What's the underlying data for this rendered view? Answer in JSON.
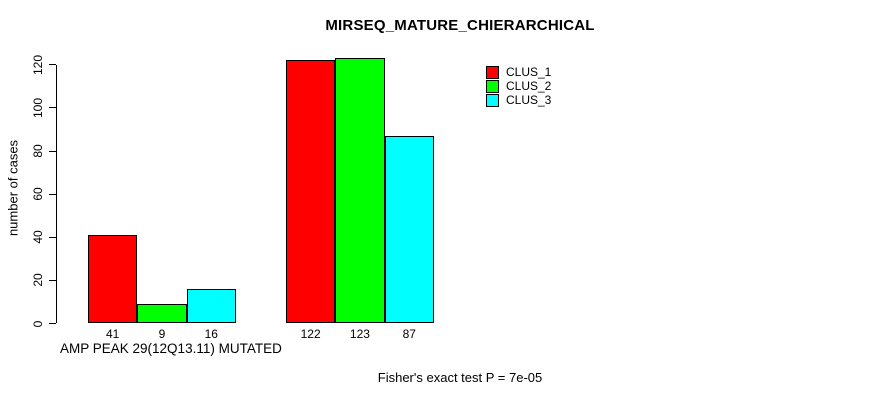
{
  "chart_data": {
    "type": "bar",
    "title": "MIRSEQ_MATURE_CHIERARCHICAL",
    "ylabel": "number of cases",
    "xlabel": "AMP PEAK 29(12Q13.11) MUTATED",
    "annotation": "Fisher's exact test P = 7e-05",
    "ylim": [
      0,
      120
    ],
    "yticks": [
      0,
      20,
      40,
      60,
      80,
      100,
      120
    ],
    "categories": [
      "",
      ""
    ],
    "series": [
      {
        "name": "CLUS_1",
        "color": "#ff0000",
        "values": [
          41,
          122
        ]
      },
      {
        "name": "CLUS_2",
        "color": "#00ff00",
        "values": [
          9,
          123
        ]
      },
      {
        "name": "CLUS_3",
        "color": "#00ffff",
        "values": [
          16,
          87
        ]
      }
    ],
    "bar_value_labels": [
      [
        41,
        9,
        16
      ],
      [
        122,
        123,
        87
      ]
    ],
    "legend_position": "top-right",
    "grid": false,
    "background": "#ffffff",
    "bar_border_color": "#000000"
  }
}
